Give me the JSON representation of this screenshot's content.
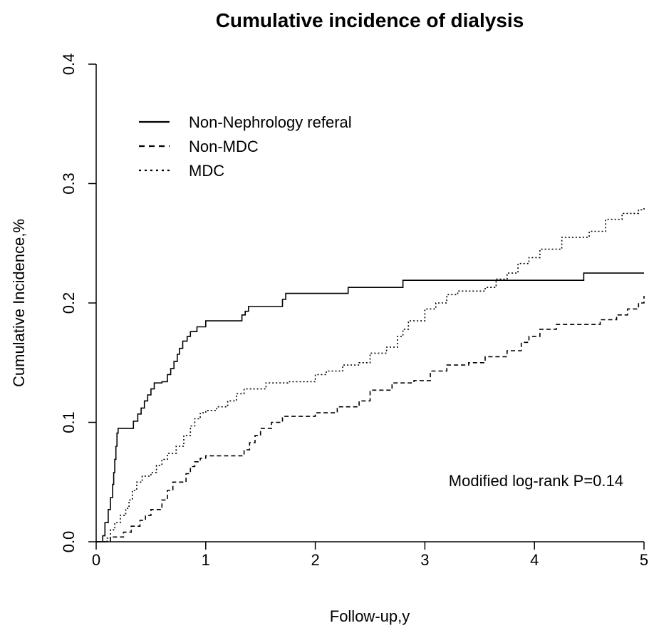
{
  "chart_data": {
    "type": "line",
    "title": "Cumulative incidence of dialysis",
    "xlabel": "Follow-up,y",
    "ylabel": "Cumulative Incidence,%",
    "xlim": [
      0,
      5
    ],
    "ylim": [
      0,
      0.4
    ],
    "x_ticks": [
      "0",
      "1",
      "2",
      "3",
      "4",
      "5"
    ],
    "y_ticks": [
      "0.0",
      "0.1",
      "0.2",
      "0.3",
      "0.4"
    ],
    "grid": false,
    "legend_position": "top-left",
    "annotation": "Modified log-rank P=0.14",
    "series": [
      {
        "name": "Non-Nephrology referal",
        "line_style": "solid",
        "points": [
          [
            0,
            0
          ],
          [
            0.05,
            0
          ],
          [
            0.06,
            0.005
          ],
          [
            0.08,
            0.016
          ],
          [
            0.11,
            0.027
          ],
          [
            0.13,
            0.037
          ],
          [
            0.15,
            0.048
          ],
          [
            0.16,
            0.058
          ],
          [
            0.17,
            0.069
          ],
          [
            0.18,
            0.08
          ],
          [
            0.19,
            0.091
          ],
          [
            0.2,
            0.095
          ],
          [
            0.33,
            0.095
          ],
          [
            0.34,
            0.101
          ],
          [
            0.38,
            0.107
          ],
          [
            0.41,
            0.112
          ],
          [
            0.44,
            0.118
          ],
          [
            0.47,
            0.123
          ],
          [
            0.5,
            0.128
          ],
          [
            0.53,
            0.133
          ],
          [
            0.6,
            0.134
          ],
          [
            0.65,
            0.14
          ],
          [
            0.68,
            0.145
          ],
          [
            0.71,
            0.151
          ],
          [
            0.74,
            0.157
          ],
          [
            0.76,
            0.162
          ],
          [
            0.79,
            0.168
          ],
          [
            0.83,
            0.172
          ],
          [
            0.86,
            0.176
          ],
          [
            0.92,
            0.18
          ],
          [
            1.0,
            0.185
          ],
          [
            1.3,
            0.185
          ],
          [
            1.33,
            0.19
          ],
          [
            1.36,
            0.193
          ],
          [
            1.39,
            0.197
          ],
          [
            1.7,
            0.203
          ],
          [
            1.73,
            0.208
          ],
          [
            2.3,
            0.213
          ],
          [
            2.8,
            0.219
          ],
          [
            4.45,
            0.225
          ],
          [
            5.0,
            0.225
          ]
        ]
      },
      {
        "name": "Non-MDC",
        "line_style": "dashed",
        "points": [
          [
            0,
            0
          ],
          [
            0.1,
            0
          ],
          [
            0.13,
            0.004
          ],
          [
            0.2,
            0.004
          ],
          [
            0.25,
            0.008
          ],
          [
            0.32,
            0.013
          ],
          [
            0.4,
            0.018
          ],
          [
            0.45,
            0.022
          ],
          [
            0.5,
            0.027
          ],
          [
            0.55,
            0.027
          ],
          [
            0.6,
            0.035
          ],
          [
            0.65,
            0.043
          ],
          [
            0.7,
            0.05
          ],
          [
            0.78,
            0.05
          ],
          [
            0.82,
            0.057
          ],
          [
            0.86,
            0.063
          ],
          [
            0.9,
            0.067
          ],
          [
            0.95,
            0.07
          ],
          [
            1.0,
            0.072
          ],
          [
            1.2,
            0.072
          ],
          [
            1.35,
            0.077
          ],
          [
            1.4,
            0.083
          ],
          [
            1.45,
            0.089
          ],
          [
            1.5,
            0.095
          ],
          [
            1.6,
            0.1
          ],
          [
            1.7,
            0.105
          ],
          [
            2.0,
            0.108
          ],
          [
            2.2,
            0.113
          ],
          [
            2.4,
            0.118
          ],
          [
            2.5,
            0.127
          ],
          [
            2.7,
            0.133
          ],
          [
            2.9,
            0.135
          ],
          [
            3.05,
            0.143
          ],
          [
            3.2,
            0.148
          ],
          [
            3.4,
            0.15
          ],
          [
            3.55,
            0.155
          ],
          [
            3.75,
            0.16
          ],
          [
            3.88,
            0.167
          ],
          [
            3.95,
            0.172
          ],
          [
            4.05,
            0.178
          ],
          [
            4.2,
            0.182
          ],
          [
            4.5,
            0.182
          ],
          [
            4.6,
            0.186
          ],
          [
            4.75,
            0.19
          ],
          [
            4.85,
            0.195
          ],
          [
            4.95,
            0.2
          ],
          [
            5.0,
            0.206
          ]
        ]
      },
      {
        "name": "MDC",
        "line_style": "dotted",
        "points": [
          [
            0,
            0
          ],
          [
            0.1,
            0.003
          ],
          [
            0.13,
            0.01
          ],
          [
            0.17,
            0.016
          ],
          [
            0.22,
            0.022
          ],
          [
            0.27,
            0.028
          ],
          [
            0.3,
            0.035
          ],
          [
            0.33,
            0.043
          ],
          [
            0.37,
            0.05
          ],
          [
            0.42,
            0.055
          ],
          [
            0.5,
            0.058
          ],
          [
            0.55,
            0.064
          ],
          [
            0.6,
            0.069
          ],
          [
            0.65,
            0.074
          ],
          [
            0.73,
            0.08
          ],
          [
            0.8,
            0.089
          ],
          [
            0.86,
            0.097
          ],
          [
            0.9,
            0.103
          ],
          [
            0.95,
            0.108
          ],
          [
            1.0,
            0.11
          ],
          [
            1.1,
            0.113
          ],
          [
            1.2,
            0.118
          ],
          [
            1.28,
            0.124
          ],
          [
            1.35,
            0.128
          ],
          [
            1.45,
            0.128
          ],
          [
            1.55,
            0.133
          ],
          [
            1.75,
            0.134
          ],
          [
            2.0,
            0.14
          ],
          [
            2.1,
            0.143
          ],
          [
            2.25,
            0.148
          ],
          [
            2.4,
            0.15
          ],
          [
            2.5,
            0.158
          ],
          [
            2.65,
            0.163
          ],
          [
            2.75,
            0.172
          ],
          [
            2.8,
            0.178
          ],
          [
            2.85,
            0.185
          ],
          [
            3.0,
            0.195
          ],
          [
            3.1,
            0.2
          ],
          [
            3.2,
            0.207
          ],
          [
            3.3,
            0.21
          ],
          [
            3.55,
            0.213
          ],
          [
            3.65,
            0.22
          ],
          [
            3.75,
            0.225
          ],
          [
            3.85,
            0.233
          ],
          [
            3.95,
            0.238
          ],
          [
            4.05,
            0.245
          ],
          [
            4.25,
            0.255
          ],
          [
            4.5,
            0.26
          ],
          [
            4.65,
            0.27
          ],
          [
            4.8,
            0.275
          ],
          [
            4.95,
            0.278
          ],
          [
            5.0,
            0.28
          ]
        ]
      }
    ]
  }
}
